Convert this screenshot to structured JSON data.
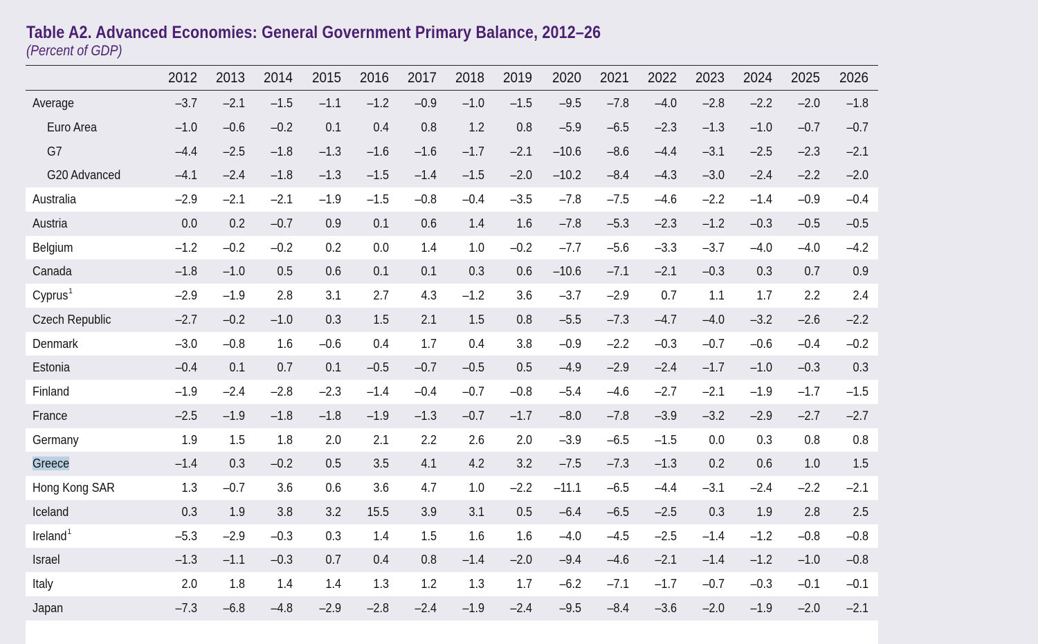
{
  "document": {
    "title": "Table A2. Advanced Economies: General Government Primary Balance, 2012–26",
    "subtitle": "(Percent of GDP)"
  },
  "table": {
    "years": [
      "2012",
      "2013",
      "2014",
      "2015",
      "2016",
      "2017",
      "2018",
      "2019",
      "2020",
      "2021",
      "2022",
      "2023",
      "2024",
      "2025",
      "2026"
    ],
    "rows": [
      {
        "label": "Average",
        "indent": false,
        "shaded": false,
        "highlight": false,
        "sup": "",
        "values": [
          "–3.7",
          "–2.1",
          "–1.5",
          "–1.1",
          "–1.2",
          "–0.9",
          "–1.0",
          "–1.5",
          "–9.5",
          "–7.8",
          "–4.0",
          "–2.8",
          "–2.2",
          "–2.0",
          "–1.8"
        ]
      },
      {
        "label": "Euro Area",
        "indent": true,
        "shaded": false,
        "highlight": false,
        "sup": "",
        "values": [
          "–1.0",
          "–0.6",
          "–0.2",
          "0.1",
          "0.4",
          "0.8",
          "1.2",
          "0.8",
          "–5.9",
          "–6.5",
          "–2.3",
          "–1.3",
          "–1.0",
          "–0.7",
          "–0.7"
        ]
      },
      {
        "label": "G7",
        "indent": true,
        "shaded": false,
        "highlight": false,
        "sup": "",
        "values": [
          "–4.4",
          "–2.5",
          "–1.8",
          "–1.3",
          "–1.6",
          "–1.6",
          "–1.7",
          "–2.1",
          "–10.6",
          "–8.6",
          "–4.4",
          "–3.1",
          "–2.5",
          "–2.3",
          "–2.1"
        ]
      },
      {
        "label": "G20 Advanced",
        "indent": true,
        "shaded": false,
        "highlight": false,
        "sup": "",
        "values": [
          "–4.1",
          "–2.4",
          "–1.8",
          "–1.3",
          "–1.5",
          "–1.4",
          "–1.5",
          "–2.0",
          "–10.2",
          "–8.4",
          "–4.3",
          "–3.0",
          "–2.4",
          "–2.2",
          "–2.0"
        ]
      },
      {
        "label": "Australia",
        "indent": false,
        "shaded": true,
        "highlight": false,
        "sup": "",
        "values": [
          "–2.9",
          "–2.1",
          "–2.1",
          "–1.9",
          "–1.5",
          "–0.8",
          "–0.4",
          "–3.5",
          "–7.8",
          "–7.5",
          "–4.6",
          "–2.2",
          "–1.4",
          "–0.9",
          "–0.4"
        ]
      },
      {
        "label": "Austria",
        "indent": false,
        "shaded": false,
        "highlight": false,
        "sup": "",
        "values": [
          "0.0",
          "0.2",
          "–0.7",
          "0.9",
          "0.1",
          "0.6",
          "1.4",
          "1.6",
          "–7.8",
          "–5.3",
          "–2.3",
          "–1.2",
          "–0.3",
          "–0.5",
          "–0.5"
        ]
      },
      {
        "label": "Belgium",
        "indent": false,
        "shaded": true,
        "highlight": false,
        "sup": "",
        "values": [
          "–1.2",
          "–0.2",
          "–0.2",
          "0.2",
          "0.0",
          "1.4",
          "1.0",
          "–0.2",
          "–7.7",
          "–5.6",
          "–3.3",
          "–3.7",
          "–4.0",
          "–4.0",
          "–4.2"
        ]
      },
      {
        "label": "Canada",
        "indent": false,
        "shaded": false,
        "highlight": false,
        "sup": "",
        "values": [
          "–1.8",
          "–1.0",
          "0.5",
          "0.6",
          "0.1",
          "0.1",
          "0.3",
          "0.6",
          "–10.6",
          "–7.1",
          "–2.1",
          "–0.3",
          "0.3",
          "0.7",
          "0.9"
        ]
      },
      {
        "label": "Cyprus",
        "indent": false,
        "shaded": true,
        "highlight": false,
        "sup": "1",
        "values": [
          "–2.9",
          "–1.9",
          "2.8",
          "3.1",
          "2.7",
          "4.3",
          "–1.2",
          "3.6",
          "–3.7",
          "–2.9",
          "0.7",
          "1.1",
          "1.7",
          "2.2",
          "2.4"
        ]
      },
      {
        "label": "Czech Republic",
        "indent": false,
        "shaded": false,
        "highlight": false,
        "sup": "",
        "values": [
          "–2.7",
          "–0.2",
          "–1.0",
          "0.3",
          "1.5",
          "2.1",
          "1.5",
          "0.8",
          "–5.5",
          "–7.3",
          "–4.7",
          "–4.0",
          "–3.2",
          "–2.6",
          "–2.2"
        ]
      },
      {
        "label": "Denmark",
        "indent": false,
        "shaded": true,
        "highlight": false,
        "sup": "",
        "values": [
          "–3.0",
          "–0.8",
          "1.6",
          "–0.6",
          "0.4",
          "1.7",
          "0.4",
          "3.8",
          "–0.9",
          "–2.2",
          "–0.3",
          "–0.7",
          "–0.6",
          "–0.4",
          "–0.2"
        ]
      },
      {
        "label": "Estonia",
        "indent": false,
        "shaded": false,
        "highlight": false,
        "sup": "",
        "values": [
          "–0.4",
          "0.1",
          "0.7",
          "0.1",
          "–0.5",
          "–0.7",
          "–0.5",
          "0.5",
          "–4.9",
          "–2.9",
          "–2.4",
          "–1.7",
          "–1.0",
          "–0.3",
          "0.3"
        ]
      },
      {
        "label": "Finland",
        "indent": false,
        "shaded": true,
        "highlight": false,
        "sup": "",
        "values": [
          "–1.9",
          "–2.4",
          "–2.8",
          "–2.3",
          "–1.4",
          "–0.4",
          "–0.7",
          "–0.8",
          "–5.4",
          "–4.6",
          "–2.7",
          "–2.1",
          "–1.9",
          "–1.7",
          "–1.5"
        ]
      },
      {
        "label": "France",
        "indent": false,
        "shaded": false,
        "highlight": false,
        "sup": "",
        "values": [
          "–2.5",
          "–1.9",
          "–1.8",
          "–1.8",
          "–1.9",
          "–1.3",
          "–0.7",
          "–1.7",
          "–8.0",
          "–7.8",
          "–3.9",
          "–3.2",
          "–2.9",
          "–2.7",
          "–2.7"
        ]
      },
      {
        "label": "Germany",
        "indent": false,
        "shaded": true,
        "highlight": false,
        "sup": "",
        "values": [
          "1.9",
          "1.5",
          "1.8",
          "2.0",
          "2.1",
          "2.2",
          "2.6",
          "2.0",
          "–3.9",
          "–6.5",
          "–1.5",
          "0.0",
          "0.3",
          "0.8",
          "0.8"
        ]
      },
      {
        "label": "Greece",
        "indent": false,
        "shaded": false,
        "highlight": true,
        "sup": "",
        "values": [
          "–1.4",
          "0.3",
          "–0.2",
          "0.5",
          "3.5",
          "4.1",
          "4.2",
          "3.2",
          "–7.5",
          "–7.3",
          "–1.3",
          "0.2",
          "0.6",
          "1.0",
          "1.5"
        ]
      },
      {
        "label": "Hong Kong SAR",
        "indent": false,
        "shaded": true,
        "highlight": false,
        "sup": "",
        "values": [
          "1.3",
          "–0.7",
          "3.6",
          "0.6",
          "3.6",
          "4.7",
          "1.0",
          "–2.2",
          "–11.1",
          "–6.5",
          "–4.4",
          "–3.1",
          "–2.4",
          "–2.2",
          "–2.1"
        ]
      },
      {
        "label": "Iceland",
        "indent": false,
        "shaded": false,
        "highlight": false,
        "sup": "",
        "values": [
          "0.3",
          "1.9",
          "3.8",
          "3.2",
          "15.5",
          "3.9",
          "3.1",
          "0.5",
          "–6.4",
          "–6.5",
          "–2.5",
          "0.3",
          "1.9",
          "2.8",
          "2.5"
        ]
      },
      {
        "label": "Ireland",
        "indent": false,
        "shaded": true,
        "highlight": false,
        "sup": "1",
        "values": [
          "–5.3",
          "–2.9",
          "–0.3",
          "0.3",
          "1.4",
          "1.5",
          "1.6",
          "1.6",
          "–4.0",
          "–4.5",
          "–2.5",
          "–1.4",
          "–1.2",
          "–0.8",
          "–0.8"
        ]
      },
      {
        "label": "Israel",
        "indent": false,
        "shaded": false,
        "highlight": false,
        "sup": "",
        "values": [
          "–1.3",
          "–1.1",
          "–0.3",
          "0.7",
          "0.4",
          "0.8",
          "–1.4",
          "–2.0",
          "–9.4",
          "–4.6",
          "–2.1",
          "–1.4",
          "–1.2",
          "–1.0",
          "–0.8"
        ]
      },
      {
        "label": "Italy",
        "indent": false,
        "shaded": true,
        "highlight": false,
        "sup": "",
        "values": [
          "2.0",
          "1.8",
          "1.4",
          "1.4",
          "1.3",
          "1.2",
          "1.3",
          "1.7",
          "–6.2",
          "–7.1",
          "–1.7",
          "–0.7",
          "–0.3",
          "–0.1",
          "–0.1"
        ]
      },
      {
        "label": "Japan",
        "indent": false,
        "shaded": false,
        "highlight": false,
        "sup": "",
        "values": [
          "–7.3",
          "–6.8",
          "–4.8",
          "–2.9",
          "–2.8",
          "–2.4",
          "–1.9",
          "–2.4",
          "–9.5",
          "–8.4",
          "–3.6",
          "–2.0",
          "–1.9",
          "–2.0",
          "–2.1"
        ]
      },
      {
        "label": "",
        "indent": false,
        "shaded": true,
        "highlight": false,
        "sup": "",
        "values": []
      }
    ]
  },
  "colors": {
    "title": "#4b1f6f",
    "page_background": "#ebe9f0",
    "shaded_row": "#ffffff",
    "selection_highlight": "#b9cfe4"
  }
}
